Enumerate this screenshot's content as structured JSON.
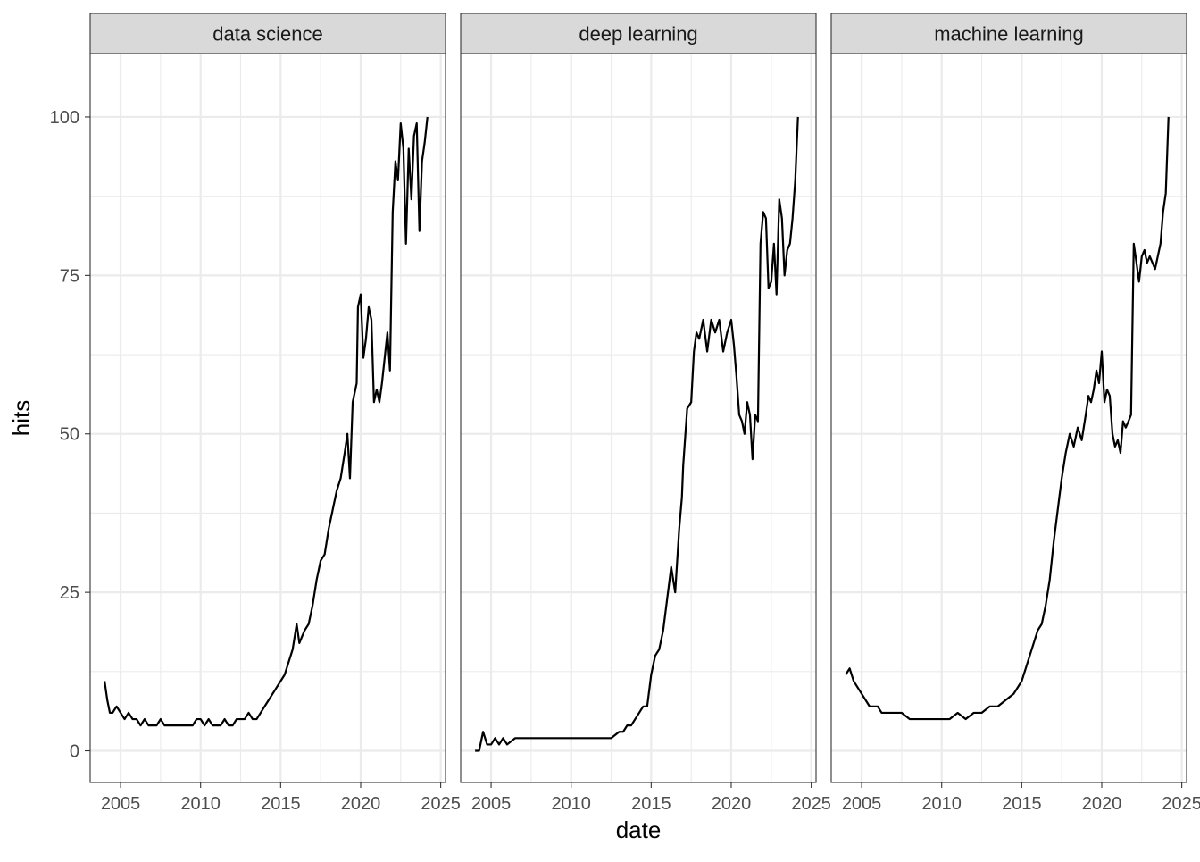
{
  "chart_data": {
    "type": "line",
    "xlabel": "date",
    "ylabel": "hits",
    "xlim": [
      2003.1,
      2025.3
    ],
    "ylim": [
      -5,
      110
    ],
    "x_ticks": [
      2005,
      2010,
      2015,
      2020,
      2025
    ],
    "x_tick_labels": [
      "2005",
      "2010",
      "2015",
      "2020",
      "2025"
    ],
    "y_ticks": [
      0,
      25,
      50,
      75,
      100
    ],
    "y_tick_labels": [
      "0",
      "25",
      "50",
      "75",
      "100"
    ],
    "grid": true,
    "panels": [
      {
        "name": "data science",
        "x": [
          2004.0,
          2004.17,
          2004.33,
          2004.5,
          2004.75,
          2005.0,
          2005.25,
          2005.5,
          2005.75,
          2006.0,
          2006.25,
          2006.5,
          2006.75,
          2007.0,
          2007.25,
          2007.5,
          2007.75,
          2008.0,
          2008.25,
          2008.5,
          2008.75,
          2009.0,
          2009.25,
          2009.5,
          2009.75,
          2010.0,
          2010.25,
          2010.5,
          2010.75,
          2011.0,
          2011.25,
          2011.5,
          2011.75,
          2012.0,
          2012.25,
          2012.5,
          2012.75,
          2013.0,
          2013.25,
          2013.5,
          2013.75,
          2014.0,
          2014.25,
          2014.5,
          2014.75,
          2015.0,
          2015.25,
          2015.5,
          2015.75,
          2016.0,
          2016.17,
          2016.33,
          2016.5,
          2016.75,
          2017.0,
          2017.25,
          2017.5,
          2017.75,
          2018.0,
          2018.25,
          2018.5,
          2018.75,
          2019.0,
          2019.17,
          2019.33,
          2019.5,
          2019.75,
          2019.83,
          2020.0,
          2020.17,
          2020.33,
          2020.5,
          2020.67,
          2020.83,
          2021.0,
          2021.17,
          2021.33,
          2021.5,
          2021.67,
          2021.83,
          2022.0,
          2022.17,
          2022.33,
          2022.5,
          2022.67,
          2022.83,
          2023.0,
          2023.17,
          2023.33,
          2023.5,
          2023.67,
          2023.83,
          2024.0,
          2024.17
        ],
        "y": [
          11,
          8,
          6,
          6,
          7,
          6,
          5,
          6,
          5,
          5,
          4,
          5,
          4,
          4,
          4,
          5,
          4,
          4,
          4,
          4,
          4,
          4,
          4,
          4,
          5,
          5,
          4,
          5,
          4,
          4,
          4,
          5,
          4,
          4,
          5,
          5,
          5,
          6,
          5,
          5,
          6,
          7,
          8,
          9,
          10,
          11,
          12,
          14,
          16,
          20,
          17,
          18,
          19,
          20,
          23,
          27,
          30,
          31,
          35,
          38,
          41,
          43,
          47,
          50,
          43,
          55,
          58,
          70,
          72,
          62,
          65,
          70,
          68,
          55,
          57,
          55,
          58,
          62,
          66,
          60,
          85,
          93,
          90,
          99,
          95,
          80,
          95,
          87,
          97,
          99,
          82,
          93,
          96,
          100
        ]
      },
      {
        "name": "deep learning",
        "x": [
          2004.0,
          2004.25,
          2004.5,
          2004.75,
          2005.0,
          2005.25,
          2005.5,
          2005.75,
          2006.0,
          2006.5,
          2007.0,
          2007.5,
          2008.0,
          2008.5,
          2009.0,
          2009.5,
          2010.0,
          2010.5,
          2011.0,
          2011.5,
          2012.0,
          2012.5,
          2013.0,
          2013.25,
          2013.5,
          2013.75,
          2014.0,
          2014.25,
          2014.5,
          2014.75,
          2015.0,
          2015.25,
          2015.5,
          2015.75,
          2016.0,
          2016.25,
          2016.5,
          2016.75,
          2016.92,
          2017.0,
          2017.25,
          2017.5,
          2017.67,
          2017.83,
          2018.0,
          2018.25,
          2018.5,
          2018.75,
          2019.0,
          2019.25,
          2019.5,
          2019.75,
          2020.0,
          2020.17,
          2020.33,
          2020.5,
          2020.67,
          2020.83,
          2021.0,
          2021.17,
          2021.33,
          2021.5,
          2021.67,
          2021.83,
          2022.0,
          2022.17,
          2022.33,
          2022.5,
          2022.67,
          2022.83,
          2023.0,
          2023.17,
          2023.33,
          2023.5,
          2023.67,
          2023.83,
          2024.0,
          2024.17
        ],
        "y": [
          0,
          0,
          3,
          1,
          1,
          2,
          1,
          2,
          1,
          2,
          2,
          2,
          2,
          2,
          2,
          2,
          2,
          2,
          2,
          2,
          2,
          2,
          3,
          3,
          4,
          4,
          5,
          6,
          7,
          7,
          12,
          15,
          16,
          19,
          24,
          29,
          25,
          35,
          40,
          45,
          54,
          55,
          63,
          66,
          65,
          68,
          63,
          68,
          66,
          68,
          63,
          66,
          68,
          64,
          59,
          53,
          52,
          50,
          55,
          53,
          46,
          53,
          52,
          80,
          85,
          84,
          73,
          74,
          80,
          72,
          87,
          84,
          75,
          79,
          80,
          84,
          90,
          100
        ]
      },
      {
        "name": "machine learning",
        "x": [
          2004.0,
          2004.25,
          2004.5,
          2004.75,
          2005.0,
          2005.25,
          2005.5,
          2005.75,
          2006.0,
          2006.25,
          2006.5,
          2006.75,
          2007.0,
          2007.5,
          2008.0,
          2008.5,
          2009.0,
          2009.5,
          2010.0,
          2010.5,
          2011.0,
          2011.5,
          2012.0,
          2012.5,
          2013.0,
          2013.5,
          2014.0,
          2014.5,
          2015.0,
          2015.25,
          2015.5,
          2015.75,
          2016.0,
          2016.25,
          2016.5,
          2016.75,
          2017.0,
          2017.25,
          2017.5,
          2017.75,
          2018.0,
          2018.25,
          2018.5,
          2018.75,
          2019.0,
          2019.17,
          2019.33,
          2019.5,
          2019.67,
          2019.83,
          2020.0,
          2020.17,
          2020.33,
          2020.5,
          2020.67,
          2020.83,
          2021.0,
          2021.17,
          2021.33,
          2021.5,
          2021.67,
          2021.83,
          2022.0,
          2022.17,
          2022.33,
          2022.5,
          2022.67,
          2022.83,
          2023.0,
          2023.17,
          2023.33,
          2023.5,
          2023.67,
          2023.83,
          2024.0,
          2024.17
        ],
        "y": [
          12,
          13,
          11,
          10,
          9,
          8,
          7,
          7,
          7,
          6,
          6,
          6,
          6,
          6,
          5,
          5,
          5,
          5,
          5,
          5,
          6,
          5,
          6,
          6,
          7,
          7,
          8,
          9,
          11,
          13,
          15,
          17,
          19,
          20,
          23,
          27,
          33,
          38,
          43,
          47,
          50,
          48,
          51,
          49,
          53,
          56,
          55,
          57,
          60,
          58,
          63,
          55,
          57,
          56,
          50,
          48,
          49,
          47,
          52,
          51,
          52,
          53,
          80,
          77,
          74,
          78,
          79,
          77,
          78,
          77,
          76,
          78,
          80,
          85,
          88,
          100
        ]
      }
    ]
  }
}
